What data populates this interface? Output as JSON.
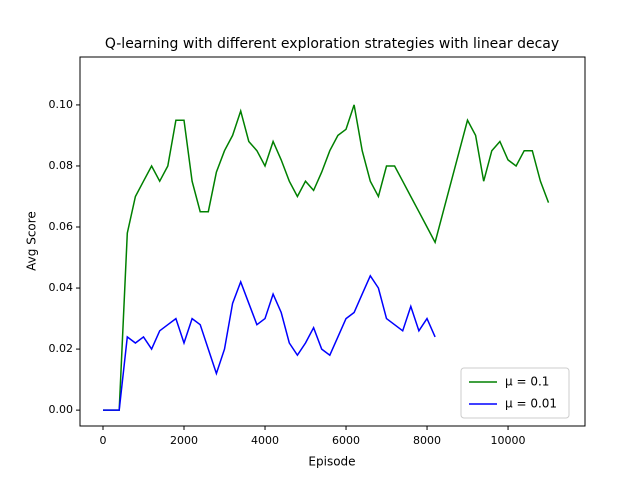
{
  "chart_data": {
    "type": "line",
    "title": "Q-learning with different exploration strategies with linear decay",
    "x_label": "Episode",
    "y_label": "Avg Score",
    "x": [
      0,
      200,
      400,
      600,
      800,
      1000,
      1200,
      1400,
      1600,
      1800,
      2000,
      2200,
      2400,
      2600,
      2800,
      3000,
      3200,
      3400,
      3600,
      3800,
      4000,
      4200,
      4400,
      4600,
      4800,
      5000,
      5200,
      5400,
      5600,
      5800,
      6000,
      6200,
      6400,
      6600,
      6800,
      7000,
      7200,
      7400,
      7600,
      7800,
      8000,
      8200,
      8400,
      8600,
      8800,
      9000,
      9200,
      9400,
      9600,
      9800,
      10000,
      10200,
      10400,
      10600,
      10800,
      11000
    ],
    "series": [
      {
        "name": "μ = 0.1",
        "color": "#008000",
        "values": [
          0,
          0,
          0,
          0.058,
          0.07,
          0.075,
          0.08,
          0.075,
          0.08,
          0.095,
          0.095,
          0.075,
          0.065,
          0.065,
          0.078,
          0.085,
          0.09,
          0.098,
          0.088,
          0.085,
          0.08,
          0.088,
          0.082,
          0.075,
          0.07,
          0.075,
          0.072,
          0.078,
          0.085,
          0.09,
          0.092,
          0.1,
          0.085,
          0.075,
          0.07,
          0.08,
          0.08,
          0.075,
          0.07,
          0.065,
          0.06,
          0.055,
          0.065,
          0.075,
          0.085,
          0.095,
          0.09,
          0.075,
          0.085,
          0.088,
          0.082,
          0.08,
          0.085,
          0.085,
          0.075,
          0.068
        ]
      },
      {
        "name": "μ = 0.01",
        "color": "#0000ff",
        "values": [
          0,
          0,
          0,
          0.024,
          0.022,
          0.024,
          0.02,
          0.026,
          0.028,
          0.03,
          0.022,
          0.03,
          0.028,
          0.02,
          0.012,
          0.02,
          0.035,
          0.042,
          0.035,
          0.028,
          0.03,
          0.038,
          0.032,
          0.022,
          0.018,
          0.022,
          0.027,
          0.02,
          0.018,
          0.024,
          0.03,
          0.032,
          0.038,
          0.044,
          0.04,
          0.03,
          0.028,
          0.026,
          0.034,
          0.026,
          0.03,
          0.024,
          null,
          null,
          null,
          null,
          null,
          null,
          null,
          null,
          null,
          null,
          null,
          null,
          null,
          null
        ]
      }
    ],
    "xlim": [
      -568,
      11900
    ],
    "ylim": [
      -0.0052,
      0.1157
    ],
    "xticks": [
      0,
      2000,
      4000,
      6000,
      8000,
      10000
    ],
    "yticks": [
      {
        "value": 0,
        "label": "0.00"
      },
      {
        "value": 0.02,
        "label": "0.02"
      },
      {
        "value": 0.04,
        "label": "0.04"
      },
      {
        "value": 0.06,
        "label": "0.06"
      },
      {
        "value": 0.08,
        "label": "0.08"
      },
      {
        "value": 0.1,
        "label": "0.10"
      }
    ],
    "legend": "lower right"
  }
}
